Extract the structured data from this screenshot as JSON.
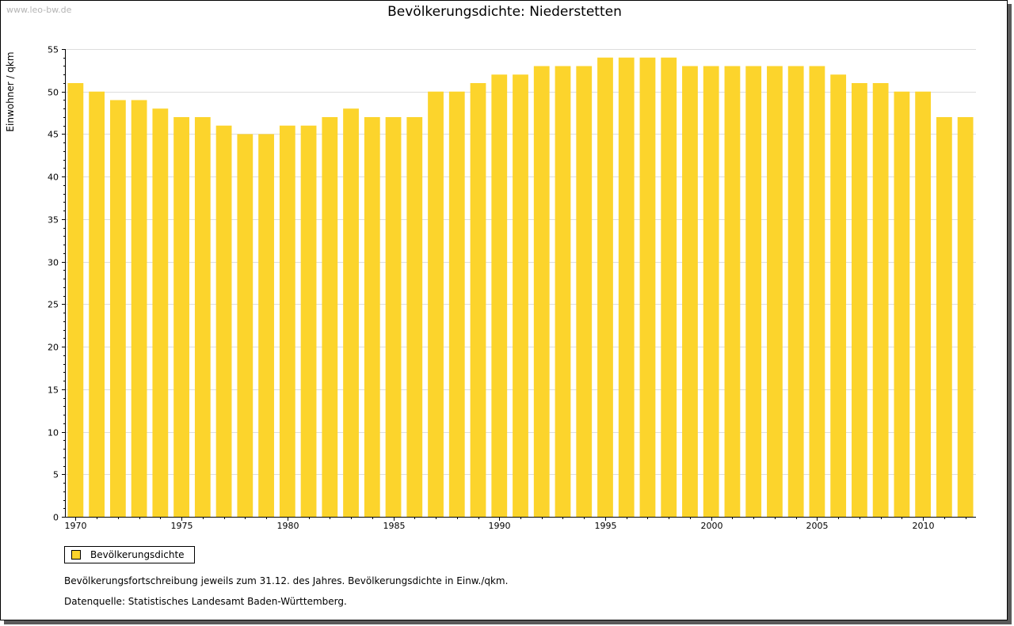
{
  "watermark": "www.leo-bw.de",
  "colors": {
    "bar": "#fcd42c",
    "grid": "#dddddd",
    "axis": "#000000"
  },
  "legend": {
    "label": "Bevölkerungsdichte",
    "icon": "legend-swatch-square"
  },
  "notes": {
    "line1": "Bevölkerungsfortschreibung jeweils zum 31.12. des Jahres. Bevölkerungsdichte in Einw./qkm.",
    "line2": "Datenquelle: Statistisches Landesamt Baden-Württemberg."
  },
  "chart_data": {
    "type": "bar",
    "title": "Bevölkerungsdichte: Niederstetten",
    "xlabel": "",
    "ylabel": "Einwohner / qkm",
    "ylim": [
      0,
      55
    ],
    "yticks": [
      0,
      5,
      10,
      15,
      20,
      25,
      30,
      35,
      40,
      45,
      50,
      55
    ],
    "xtick_labels": [
      "1970",
      "1975",
      "1980",
      "1985",
      "1990",
      "1995",
      "2000",
      "2005",
      "2010"
    ],
    "grid": true,
    "legend_position": "bottom-left",
    "categories": [
      "1970",
      "1971",
      "1972",
      "1973",
      "1974",
      "1975",
      "1976",
      "1977",
      "1978",
      "1979",
      "1980",
      "1981",
      "1982",
      "1983",
      "1984",
      "1985",
      "1986",
      "1987",
      "1988",
      "1989",
      "1990",
      "1991",
      "1992",
      "1993",
      "1994",
      "1995",
      "1996",
      "1997",
      "1998",
      "1999",
      "2000",
      "2001",
      "2002",
      "2003",
      "2004",
      "2005",
      "2006",
      "2007",
      "2008",
      "2009",
      "2010",
      "2011",
      "2012"
    ],
    "series": [
      {
        "name": "Bevölkerungsdichte",
        "values": [
          51,
          50,
          49,
          49,
          48,
          47,
          47,
          46,
          45,
          45,
          46,
          46,
          47,
          48,
          47,
          47,
          47,
          50,
          50,
          51,
          52,
          52,
          53,
          53,
          53,
          54,
          54,
          54,
          54,
          53,
          53,
          53,
          53,
          53,
          53,
          53,
          52,
          51,
          51,
          50,
          50,
          47,
          47
        ]
      }
    ]
  }
}
